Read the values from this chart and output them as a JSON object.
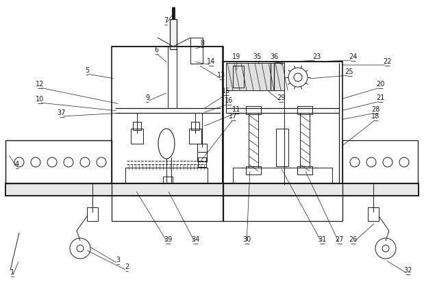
{
  "bg_color": "#ffffff",
  "line_color": "#1a1a1a",
  "figsize": [
    6.19,
    4.15
  ],
  "dpi": 100,
  "lw": 0.7,
  "lw_thick": 1.2,
  "lw_med": 0.9
}
